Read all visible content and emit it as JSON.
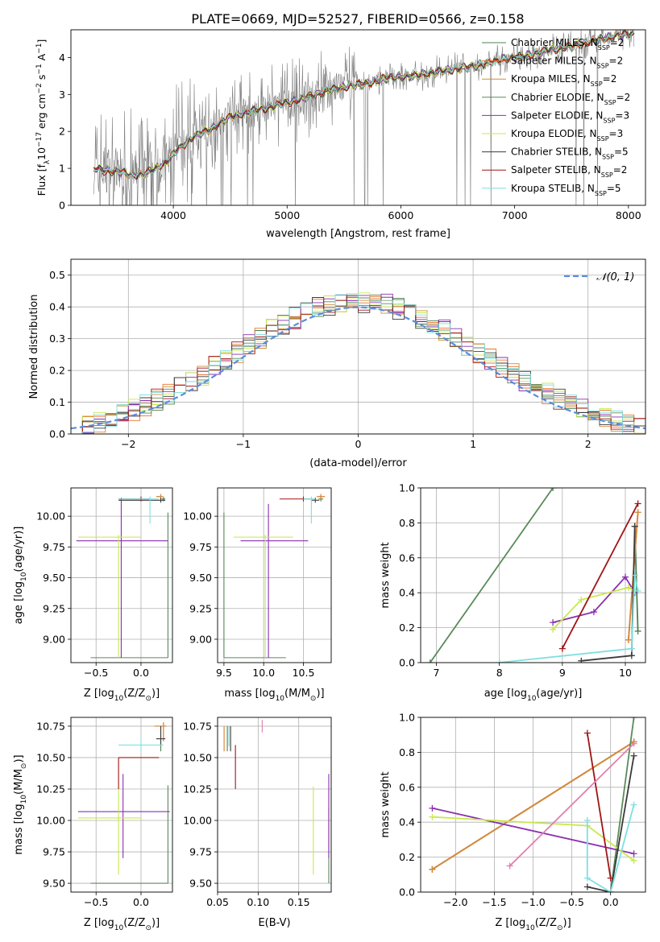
{
  "figure": {
    "title": "PLATE=0669, MJD=52527, FIBERID=0566, z=0.158"
  },
  "colors": {
    "obs": "#808080",
    "gauss": "#5b8cdc",
    "grid": "#b0b0b0",
    "Chabrier MILES": "#4d8050",
    "Salpeter MILES": "#e6742f",
    "Kroupa MILES": "#d58a3b",
    "Chabrier ELODIE": "#5a8a5a",
    "Salpeter ELODIE": "#8b2fb0",
    "Kroupa ELODIE": "#c8e84e",
    "Chabrier STELIB": "#3a3a3a",
    "Salpeter STELIB": "#a01414",
    "Kroupa STELIB": "#7edfe0"
  },
  "legend_spectrum": [
    {
      "key": "Chabrier MILES",
      "prefix": "Chabrier MILES, N",
      "sub": "SSP",
      "suffix": "=2"
    },
    {
      "key": "Salpeter MILES",
      "prefix": "Salpeter MILES, N",
      "sub": "SSP",
      "suffix": "=2"
    },
    {
      "key": "Kroupa MILES",
      "prefix": "Kroupa MILES, N",
      "sub": "SSP",
      "suffix": "=2"
    },
    {
      "key": "Chabrier ELODIE",
      "prefix": "Chabrier ELODIE, N",
      "sub": "SSP",
      "suffix": "=2"
    },
    {
      "key": "Salpeter ELODIE",
      "prefix": "Salpeter ELODIE, N",
      "sub": "SSP",
      "suffix": "=3"
    },
    {
      "key": "Kroupa ELODIE",
      "prefix": "Kroupa ELODIE, N",
      "sub": "SSP",
      "suffix": "=3"
    },
    {
      "key": "Chabrier STELIB",
      "prefix": "Chabrier STELIB, N",
      "sub": "SSP",
      "suffix": "=5"
    },
    {
      "key": "Salpeter STELIB",
      "prefix": "Salpeter STELIB, N",
      "sub": "SSP",
      "suffix": "=2"
    },
    {
      "key": "Kroupa STELIB",
      "prefix": "Kroupa STELIB, N",
      "sub": "SSP",
      "suffix": "=5"
    }
  ],
  "chart_data": [
    {
      "id": "spectrum",
      "type": "line",
      "xlabel": "wavelength [Angstrom, rest frame]",
      "ylabel": "Flux [f_λ10^-17 erg cm^-2 s^-1 A^-1]",
      "xlim": [
        3100,
        8150
      ],
      "ylim": [
        0,
        4.75
      ],
      "xticks": [
        4000,
        5000,
        6000,
        7000,
        8000
      ],
      "yticks": [
        0,
        1,
        2,
        3,
        4
      ],
      "grid": false,
      "legend": "upper right",
      "continuum": [
        [
          3300,
          1.0
        ],
        [
          3400,
          0.95
        ],
        [
          3550,
          0.9
        ],
        [
          3650,
          0.8
        ],
        [
          3750,
          0.85
        ],
        [
          3850,
          1.0
        ],
        [
          3950,
          1.2
        ],
        [
          4050,
          1.55
        ],
        [
          4200,
          1.9
        ],
        [
          4350,
          2.1
        ],
        [
          4500,
          2.4
        ],
        [
          4700,
          2.55
        ],
        [
          4900,
          2.7
        ],
        [
          5100,
          2.85
        ],
        [
          5300,
          3.05
        ],
        [
          5500,
          3.2
        ],
        [
          5700,
          3.3
        ],
        [
          5900,
          3.45
        ],
        [
          6100,
          3.5
        ],
        [
          6300,
          3.6
        ],
        [
          6500,
          3.7
        ],
        [
          6700,
          3.8
        ],
        [
          6900,
          3.95
        ],
        [
          7100,
          4.05
        ],
        [
          7300,
          4.2
        ],
        [
          7500,
          4.3
        ],
        [
          7700,
          4.45
        ],
        [
          7900,
          4.6
        ],
        [
          8050,
          4.65
        ]
      ]
    },
    {
      "id": "residuals",
      "type": "step-histogram",
      "xlabel": "(data-model)/error",
      "ylabel": "Normed distribution",
      "xlim": [
        -2.5,
        2.5
      ],
      "ylim": [
        0,
        0.55
      ],
      "xticks": [
        -2,
        -1,
        0,
        1,
        2
      ],
      "yticks": [
        0.0,
        0.1,
        0.2,
        0.3,
        0.4,
        0.5
      ],
      "grid": true,
      "legend": "upper right",
      "gauss_label": "𝒩(0, 1)",
      "bin_width": 0.1
    },
    {
      "id": "age_vs_Z",
      "type": "errorbar",
      "xlabel": "Z [log10(Z/Z⊙)]",
      "ylabel": "age  [log10(age/yr)]",
      "xlim": [
        -0.78,
        0.35
      ],
      "ylim": [
        8.81,
        10.23
      ],
      "xticks": [
        -0.5,
        0.0
      ],
      "yticks": [
        9.0,
        9.25,
        9.5,
        9.75,
        10.0
      ],
      "grid": true,
      "points": [
        {
          "model": "Chabrier MILES",
          "x": 0.25,
          "xerr": [
            0.02,
            0.02
          ],
          "y": 10.14,
          "yerr": [
            0.02,
            0.02
          ]
        },
        {
          "model": "Salpeter MILES",
          "x": 0.22,
          "xerr": [
            0.05,
            0.02
          ],
          "y": 10.16,
          "yerr": [
            0.02,
            0.02
          ]
        },
        {
          "model": "Kroupa MILES",
          "x": 0.22,
          "xerr": [
            0.05,
            0.02
          ],
          "y": 10.16,
          "yerr": [
            0.02,
            0.02
          ]
        },
        {
          "model": "Chabrier ELODIE",
          "x": 0.3,
          "xerr": [
            0.86,
            0.0
          ],
          "y": 8.85,
          "yerr": [
            0.0,
            1.18
          ]
        },
        {
          "model": "Salpeter ELODIE",
          "x": -0.22,
          "xerr": [
            0.5,
            0.52
          ],
          "y": 9.8,
          "yerr": [
            0.95,
            0.35
          ]
        },
        {
          "model": "Kroupa ELODIE",
          "x": -0.25,
          "xerr": [
            0.45,
            0.25
          ],
          "y": 9.83,
          "yerr": [
            0.98,
            0.02
          ]
        },
        {
          "model": "Chabrier STELIB",
          "x": 0.22,
          "xerr": [
            0.47,
            0.05
          ],
          "y": 10.13,
          "yerr": [
            0.02,
            0.02
          ]
        },
        {
          "model": "Salpeter STELIB",
          "x": 0.0,
          "xerr": [
            0.25,
            0.1
          ],
          "y": 10.14,
          "yerr": [
            0.02,
            0.02
          ]
        },
        {
          "model": "Kroupa STELIB",
          "x": 0.1,
          "xerr": [
            0.35,
            0.1
          ],
          "y": 10.14,
          "yerr": [
            0.2,
            0.02
          ]
        }
      ]
    },
    {
      "id": "age_vs_mass",
      "type": "errorbar",
      "xlabel": "mass [log10(M/M⊙)]",
      "ylabel": "",
      "xlim": [
        9.42,
        10.85
      ],
      "ylim": [
        8.81,
        10.23
      ],
      "xticks": [
        9.5,
        10.0,
        10.5
      ],
      "yticks": [
        9.0,
        9.25,
        9.5,
        9.75,
        10.0
      ],
      "grid": true,
      "points": [
        {
          "model": "Chabrier MILES",
          "x": 10.72,
          "xerr": [
            0.03,
            0.03
          ],
          "y": 10.14,
          "yerr": [
            0.02,
            0.02
          ]
        },
        {
          "model": "Salpeter MILES",
          "x": 10.72,
          "xerr": [
            0.05,
            0.05
          ],
          "y": 10.16,
          "yerr": [
            0.02,
            0.02
          ]
        },
        {
          "model": "Kroupa MILES",
          "x": 10.72,
          "xerr": [
            0.05,
            0.05
          ],
          "y": 10.16,
          "yerr": [
            0.02,
            0.02
          ]
        },
        {
          "model": "Chabrier ELODIE",
          "x": 9.5,
          "xerr": [
            0.0,
            0.78
          ],
          "y": 8.85,
          "yerr": [
            0.0,
            1.18
          ]
        },
        {
          "model": "Salpeter ELODIE",
          "x": 10.06,
          "xerr": [
            0.35,
            0.5
          ],
          "y": 9.8,
          "yerr": [
            0.95,
            0.3
          ]
        },
        {
          "model": "Kroupa ELODIE",
          "x": 10.02,
          "xerr": [
            0.4,
            0.35
          ],
          "y": 9.83,
          "yerr": [
            0.98,
            0.02
          ]
        },
        {
          "model": "Chabrier STELIB",
          "x": 10.65,
          "xerr": [
            0.05,
            0.05
          ],
          "y": 10.13,
          "yerr": [
            0.02,
            0.02
          ]
        },
        {
          "model": "Salpeter STELIB",
          "x": 10.5,
          "xerr": [
            0.3,
            0.1
          ],
          "y": 10.14,
          "yerr": [
            0.02,
            0.02
          ]
        },
        {
          "model": "Kroupa STELIB",
          "x": 10.6,
          "xerr": [
            0.1,
            0.05
          ],
          "y": 10.14,
          "yerr": [
            0.2,
            0.02
          ]
        }
      ]
    },
    {
      "id": "weight_vs_age",
      "type": "line",
      "xlabel": "age  [log10(age/yr)]",
      "ylabel": "mass weight",
      "xlim": [
        6.75,
        10.32
      ],
      "ylim": [
        0,
        1.0
      ],
      "xticks": [
        7,
        8,
        9,
        10
      ],
      "yticks": [
        0.0,
        0.2,
        0.4,
        0.6,
        0.8,
        1.0
      ],
      "grid": true,
      "series": [
        {
          "model": "Chabrier MILES",
          "x": [
            10.15,
            10.2
          ],
          "y": [
            0.78,
            0.18
          ]
        },
        {
          "model": "Salpeter MILES",
          "x": [
            10.05,
            10.2
          ],
          "y": [
            0.13,
            0.86
          ]
        },
        {
          "model": "Kroupa MILES",
          "x": [
            10.05,
            10.2
          ],
          "y": [
            0.13,
            0.86
          ]
        },
        {
          "model": "Chabrier ELODIE",
          "x": [
            6.9,
            8.85
          ],
          "y": [
            0.0,
            1.0
          ]
        },
        {
          "model": "Salpeter ELODIE",
          "x": [
            8.85,
            9.5,
            10.0,
            10.15
          ],
          "y": [
            0.23,
            0.29,
            0.49,
            0.4
          ]
        },
        {
          "model": "Kroupa ELODIE",
          "x": [
            8.85,
            9.3,
            10.05,
            10.15
          ],
          "y": [
            0.19,
            0.36,
            0.43,
            0.41
          ]
        },
        {
          "model": "Chabrier STELIB",
          "x": [
            9.3,
            10.1,
            10.15
          ],
          "y": [
            0.01,
            0.04,
            0.78
          ]
        },
        {
          "model": "Salpeter STELIB",
          "x": [
            9.0,
            10.2
          ],
          "y": [
            0.08,
            0.91
          ]
        },
        {
          "model": "Kroupa STELIB",
          "x": [
            8.0,
            10.1,
            10.15,
            10.2
          ],
          "y": [
            0.0,
            0.08,
            0.5,
            0.41
          ]
        }
      ]
    },
    {
      "id": "mass_vs_Z",
      "type": "errorbar",
      "xlabel": "Z [log10(Z/Z⊙)]",
      "ylabel": "mass [log10(M/M⊙)]",
      "xlim": [
        -0.78,
        0.35
      ],
      "ylim": [
        9.43,
        10.82
      ],
      "xticks": [
        -0.5,
        0.0
      ],
      "yticks": [
        9.5,
        9.75,
        10.0,
        10.25,
        10.5,
        10.75
      ],
      "grid": true,
      "points": [
        {
          "model": "Chabrier MILES",
          "x": 0.22,
          "xerr": [
            0.05,
            0.05
          ],
          "y": 10.65,
          "yerr": [
            0.1,
            0.1
          ]
        },
        {
          "model": "Salpeter MILES",
          "x": 0.25,
          "xerr": [
            0.1,
            0.03
          ],
          "y": 10.75,
          "yerr": [
            0.12,
            0.03
          ]
        },
        {
          "model": "Kroupa MILES",
          "x": 0.25,
          "xerr": [
            0.1,
            0.03
          ],
          "y": 10.75,
          "yerr": [
            0.12,
            0.03
          ]
        },
        {
          "model": "Chabrier ELODIE",
          "x": 0.3,
          "xerr": [
            0.86,
            0.0
          ],
          "y": 9.5,
          "yerr": [
            0.0,
            0.78
          ]
        },
        {
          "model": "Salpeter ELODIE",
          "x": -0.2,
          "xerr": [
            0.5,
            0.52
          ],
          "y": 10.07,
          "yerr": [
            0.37,
            0.3
          ]
        },
        {
          "model": "Kroupa ELODIE",
          "x": -0.25,
          "xerr": [
            0.45,
            0.25
          ],
          "y": 10.02,
          "yerr": [
            0.45,
            0.25
          ]
        },
        {
          "model": "Chabrier STELIB",
          "x": 0.22,
          "xerr": [
            0.05,
            0.05
          ],
          "y": 10.65,
          "yerr": [
            0.05,
            0.1
          ]
        },
        {
          "model": "Salpeter STELIB",
          "x": -0.25,
          "xerr": [
            0.0,
            0.45
          ],
          "y": 10.5,
          "yerr": [
            0.25,
            0.0
          ]
        },
        {
          "model": "Kroupa STELIB",
          "x": 0.0,
          "xerr": [
            0.25,
            0.25
          ],
          "y": 10.6,
          "yerr": [
            0.05,
            0.05
          ]
        }
      ]
    },
    {
      "id": "mass_vs_EBV",
      "type": "errorbar",
      "xlabel": "E(B-V)",
      "ylabel": "",
      "xlim": [
        0.05,
        0.19
      ],
      "ylim": [
        9.43,
        10.82
      ],
      "xticks": [
        0.05,
        0.1,
        0.15
      ],
      "yticks": [
        9.5,
        9.75,
        10.0,
        10.25,
        10.5,
        10.75
      ],
      "grid": true,
      "points": [
        {
          "model": "Chabrier MILES",
          "x": 0.062,
          "xerr": [
            0.0,
            0.0
          ],
          "y": 10.65,
          "yerr": [
            0.1,
            0.1
          ]
        },
        {
          "model": "Salpeter MILES",
          "x": 0.058,
          "xerr": [
            0.0,
            0.0
          ],
          "y": 10.65,
          "yerr": [
            0.1,
            0.1
          ]
        },
        {
          "model": "Kroupa MILES",
          "x": 0.058,
          "xerr": [
            0.0,
            0.0
          ],
          "y": 10.65,
          "yerr": [
            0.1,
            0.1
          ]
        },
        {
          "model": "Chabrier ELODIE",
          "x": 0.187,
          "xerr": [
            0.0,
            0.0
          ],
          "y": 9.8,
          "yerr": [
            0.3,
            0.3
          ]
        },
        {
          "model": "Salpeter ELODIE",
          "x": 0.187,
          "xerr": [
            0.0,
            0.0
          ],
          "y": 10.05,
          "yerr": [
            0.35,
            0.32
          ]
        },
        {
          "model": "Kroupa ELODIE",
          "x": 0.168,
          "xerr": [
            0.0,
            0.0
          ],
          "y": 9.92,
          "yerr": [
            0.35,
            0.35
          ]
        },
        {
          "model": "Chabrier STELIB",
          "x": 0.066,
          "xerr": [
            0.0,
            0.0
          ],
          "y": 10.65,
          "yerr": [
            0.1,
            0.1
          ]
        },
        {
          "model": "Salpeter STELIB",
          "x": 0.072,
          "xerr": [
            0.0,
            0.0
          ],
          "y": 10.5,
          "yerr": [
            0.25,
            0.1
          ]
        },
        {
          "model": "Kroupa STELIB",
          "x": 0.064,
          "xerr": [
            0.0,
            0.0
          ],
          "y": 10.67,
          "yerr": [
            0.08,
            0.08
          ]
        },
        {
          "model": "Salpeter ELODIE",
          "x": 0.105,
          "xerr": [
            0.0,
            0.0
          ],
          "y": 10.75,
          "yerr": [
            0.05,
            0.05
          ],
          "alt": "pink"
        }
      ]
    },
    {
      "id": "weight_vs_Z",
      "type": "line",
      "xlabel": "Z [log10(Z/Z⊙)]",
      "ylabel": "mass weight",
      "xlim": [
        -2.45,
        0.45
      ],
      "ylim": [
        0,
        1.0
      ],
      "xticks": [
        -2.0,
        -1.5,
        -1.0,
        -0.5,
        0.0
      ],
      "yticks": [
        0.0,
        0.2,
        0.4,
        0.6,
        0.8,
        1.0
      ],
      "grid": true,
      "series": [
        {
          "model": "Chabrier MILES",
          "x": [
            -2.3,
            0.3
          ],
          "y": [
            0.13,
            0.86
          ]
        },
        {
          "model": "Salpeter MILES",
          "x": [
            -2.3,
            0.3
          ],
          "y": [
            0.13,
            0.86
          ]
        },
        {
          "model": "Kroupa MILES",
          "x": [
            -2.3,
            0.3
          ],
          "y": [
            0.13,
            0.86
          ]
        },
        {
          "model": "Chabrier ELODIE",
          "x": [
            0.0,
            0.3
          ],
          "y": [
            0.0,
            1.0
          ]
        },
        {
          "model": "Salpeter ELODIE",
          "x": [
            -2.3,
            0.3
          ],
          "y": [
            0.48,
            0.22
          ]
        },
        {
          "model": "Kroupa ELODIE",
          "x": [
            -2.3,
            -0.3,
            0.3
          ],
          "y": [
            0.43,
            0.38,
            0.18
          ]
        },
        {
          "model": "Chabrier STELIB",
          "x": [
            -0.3,
            0.0,
            0.3
          ],
          "y": [
            0.03,
            0.0,
            0.78
          ]
        },
        {
          "model": "Salpeter STELIB",
          "x": [
            -0.3,
            0.0
          ],
          "y": [
            0.91,
            0.08
          ]
        },
        {
          "model": "Kroupa STELIB",
          "x": [
            -0.3,
            -0.3,
            0.0,
            0.3
          ],
          "y": [
            0.41,
            0.08,
            0.0,
            0.5
          ]
        },
        {
          "model": "pink",
          "x": [
            -1.3,
            0.3
          ],
          "y": [
            0.15,
            0.85
          ]
        }
      ]
    }
  ]
}
